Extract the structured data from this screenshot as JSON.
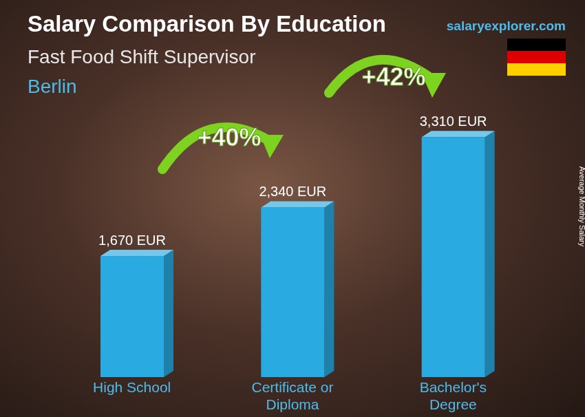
{
  "chart_data": {
    "type": "bar",
    "title": "Salary Comparison By Education",
    "subtitle": [
      "Fast Food Shift Supervisor",
      "Berlin"
    ],
    "source": "salaryexplorer.com",
    "ylabel": "Average Monthly Salary",
    "categories": [
      "High School",
      "Certificate or Diploma",
      "Bachelor's Degree"
    ],
    "values": [
      1670,
      2340,
      3310
    ],
    "value_labels": [
      "1,670 EUR",
      "2,340 EUR",
      "3,310 EUR"
    ],
    "data_labels": true,
    "color": "#29abe2",
    "tick_labels": "x",
    "grid": false,
    "annotations": [
      "+40%",
      "+42%"
    ]
  }
}
